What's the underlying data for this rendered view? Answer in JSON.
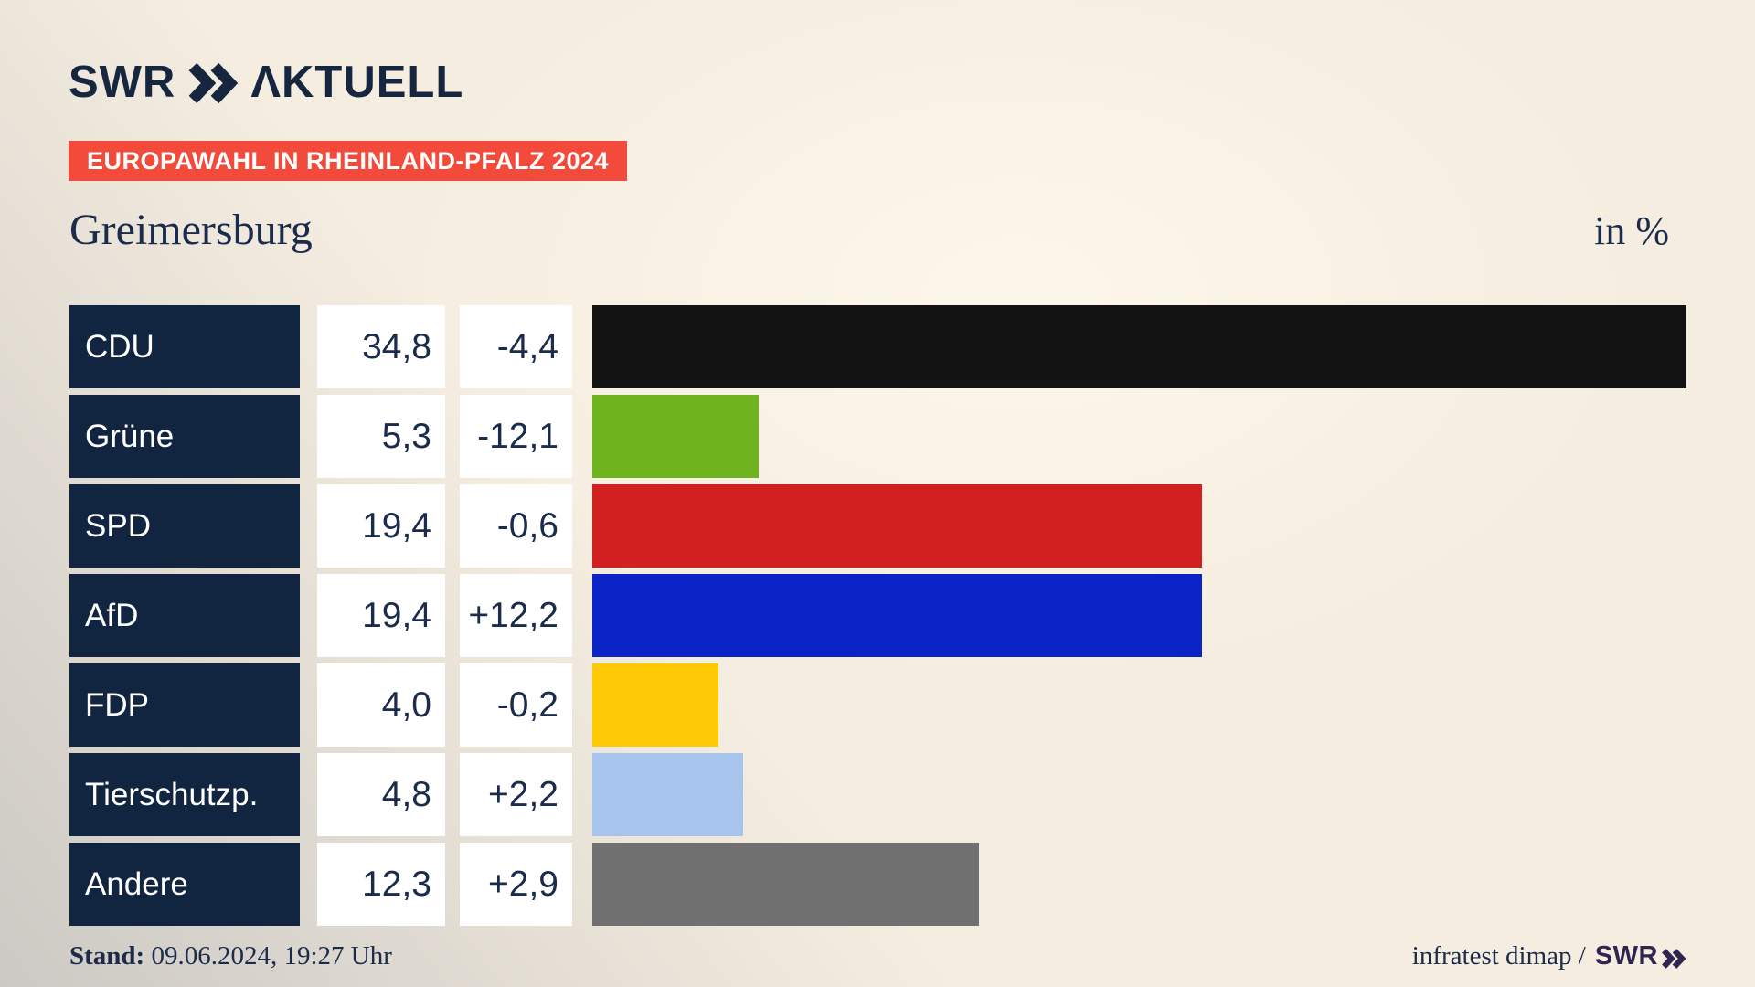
{
  "header": {
    "brand_swr": "SWR",
    "brand_aktuell": "ΛKTUELL",
    "badge": "EUROPAWAHL IN RHEINLAND-PFALZ 2024",
    "title": "Greimersburg",
    "unit_label": "in %"
  },
  "chart_data": {
    "type": "bar",
    "orientation": "horizontal",
    "title": "Greimersburg",
    "unit": "in %",
    "xlim": [
      0,
      34.8
    ],
    "categories": [
      "CDU",
      "Grüne",
      "SPD",
      "AfD",
      "FDP",
      "Tierschutzp.",
      "Andere"
    ],
    "values": [
      34.8,
      5.3,
      19.4,
      19.4,
      4.0,
      4.8,
      12.3
    ],
    "value_labels": [
      "34,8",
      "5,3",
      "19,4",
      "19,4",
      "4,0",
      "4,8",
      "12,3"
    ],
    "diff_labels": [
      "-4,4",
      "-12,1",
      "-0,6",
      "+12,2",
      "-0,2",
      "+2,2",
      "+2,9"
    ],
    "bar_colors": [
      "#131313",
      "#6fb41e",
      "#d22021",
      "#0b24c8",
      "#fec905",
      "#a6c4ec",
      "#707070"
    ]
  },
  "footer": {
    "stand_label": "Stand:",
    "stand_value": " 09.06.2024, 19:27 Uhr",
    "source_text": "infratest dimap /",
    "source_brand": "SWR"
  },
  "colors": {
    "cream": "#f5ede0",
    "cream-light": "#fdf6ea",
    "gray-corner": "#ccc9c4",
    "navy-cell": "#122540",
    "navy-text": "#1b2b4b",
    "navy-logo": "#16263f",
    "badge-red": "#f24b3c",
    "swr-purple": "#2f2452"
  }
}
